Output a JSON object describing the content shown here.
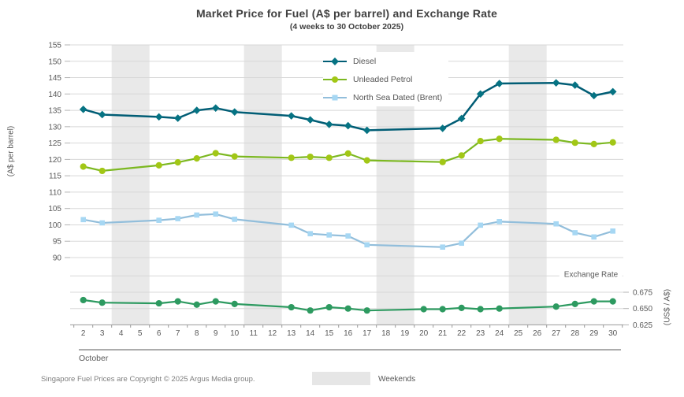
{
  "chart_data": {
    "type": "line",
    "title": "Market Price for Fuel (A$ per barrel) and Exchange Rate",
    "subtitle": "(4 weeks to 30 October 2025)",
    "x_axis": {
      "month": "October",
      "first_day": 2,
      "last_day": 30
    },
    "left_axis": {
      "label": "(A$ per barrel)",
      "min": 90,
      "max": 155,
      "step": 5
    },
    "right_axis": {
      "label": "(US$ / A$)",
      "section_label": "Exchange Rate",
      "ticks": [
        0.675,
        0.65,
        0.625
      ],
      "top_grid_value": 0.7
    },
    "weekend_bands": [
      [
        4,
        5
      ],
      [
        11,
        12
      ],
      [
        18,
        19
      ],
      [
        25,
        26
      ]
    ],
    "legend_position": "top-center-inside",
    "grid": true,
    "series": [
      {
        "name": "Diesel",
        "axis": "left",
        "marker": "diamond",
        "color": "#015d75",
        "marker_color": "#067383",
        "points": [
          [
            2,
            135.3
          ],
          [
            3,
            133.7
          ],
          [
            6,
            133.0
          ],
          [
            7,
            132.6
          ],
          [
            8,
            135.0
          ],
          [
            9,
            135.7
          ],
          [
            10,
            134.5
          ],
          [
            13,
            133.3
          ],
          [
            14,
            132.1
          ],
          [
            15,
            130.7
          ],
          [
            16,
            130.3
          ],
          [
            17,
            128.9
          ],
          [
            21,
            129.5
          ],
          [
            22,
            132.5
          ],
          [
            23,
            140.0
          ],
          [
            24,
            143.2
          ],
          [
            27,
            143.4
          ],
          [
            28,
            142.7
          ],
          [
            29,
            139.5
          ],
          [
            30,
            140.7
          ]
        ]
      },
      {
        "name": "Unleaded Petrol",
        "axis": "left",
        "marker": "circle",
        "color": "#7cb821",
        "marker_color": "#a2c716",
        "points": [
          [
            2,
            117.8
          ],
          [
            3,
            116.5
          ],
          [
            6,
            118.2
          ],
          [
            7,
            119.1
          ],
          [
            8,
            120.3
          ],
          [
            9,
            121.9
          ],
          [
            10,
            120.9
          ],
          [
            13,
            120.5
          ],
          [
            14,
            120.8
          ],
          [
            15,
            120.5
          ],
          [
            16,
            121.8
          ],
          [
            17,
            119.7
          ],
          [
            21,
            119.2
          ],
          [
            22,
            121.2
          ],
          [
            23,
            125.6
          ],
          [
            24,
            126.3
          ],
          [
            27,
            126.0
          ],
          [
            28,
            125.1
          ],
          [
            29,
            124.7
          ],
          [
            30,
            125.2
          ]
        ]
      },
      {
        "name": "North Sea Dated (Brent)",
        "axis": "left",
        "marker": "square",
        "color": "#92bedb",
        "marker_color": "#a6d7f3",
        "points": [
          [
            2,
            101.6
          ],
          [
            3,
            100.6
          ],
          [
            6,
            101.4
          ],
          [
            7,
            101.9
          ],
          [
            8,
            103.0
          ],
          [
            9,
            103.3
          ],
          [
            10,
            101.7
          ],
          [
            13,
            99.9
          ],
          [
            14,
            97.3
          ],
          [
            15,
            96.9
          ],
          [
            16,
            96.6
          ],
          [
            17,
            93.9
          ],
          [
            21,
            93.2
          ],
          [
            22,
            94.4
          ],
          [
            23,
            99.9
          ],
          [
            24,
            101.0
          ],
          [
            27,
            100.3
          ],
          [
            28,
            97.6
          ],
          [
            29,
            96.3
          ],
          [
            30,
            98.1
          ]
        ]
      },
      {
        "name": "Exchange Rate",
        "axis": "right",
        "marker": "circle",
        "color": "#2d9a60",
        "marker_color": "#2d9a60",
        "points": [
          [
            2,
            0.663
          ],
          [
            3,
            0.659
          ],
          [
            6,
            0.658
          ],
          [
            7,
            0.661
          ],
          [
            8,
            0.656
          ],
          [
            9,
            0.661
          ],
          [
            10,
            0.657
          ],
          [
            13,
            0.652
          ],
          [
            14,
            0.647
          ],
          [
            15,
            0.652
          ],
          [
            16,
            0.65
          ],
          [
            17,
            0.647
          ],
          [
            20,
            0.649
          ],
          [
            21,
            0.649
          ],
          [
            22,
            0.651
          ],
          [
            23,
            0.649
          ],
          [
            24,
            0.65
          ],
          [
            27,
            0.653
          ],
          [
            28,
            0.657
          ],
          [
            29,
            0.661
          ],
          [
            30,
            0.661
          ]
        ]
      }
    ]
  },
  "footer": {
    "copyright": "Singapore Fuel Prices are Copyright © 2025 Argus Media group.",
    "weekend_label": "Weekends"
  },
  "colors": {
    "weekend_band": "#e9e9e9",
    "gridline": "#d8d8d8",
    "axis_line": "#9a9a9a",
    "tick_mark": "#b3b3b3",
    "separator": "#595959",
    "tick_text": "#595959",
    "title_text": "#404040"
  }
}
